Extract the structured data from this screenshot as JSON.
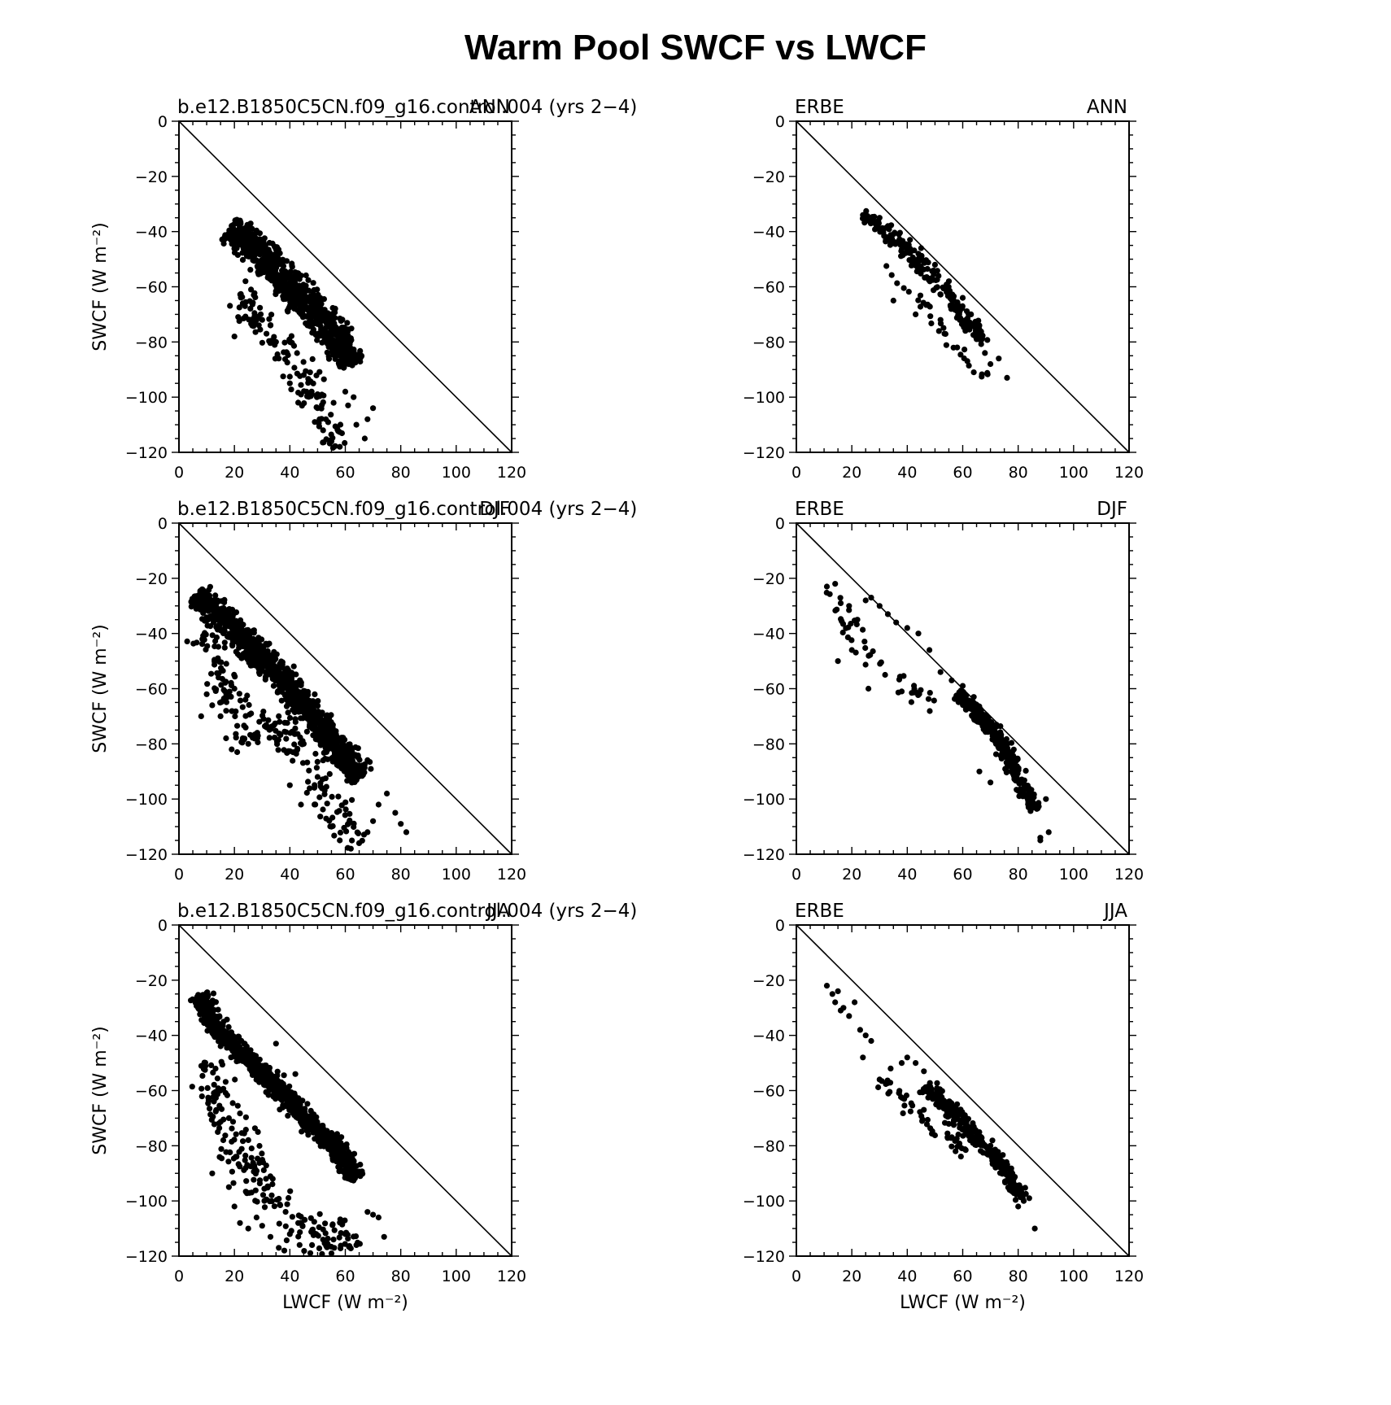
{
  "figure": {
    "title": "Warm Pool SWCF vs LWCF"
  },
  "chart_data": [
    {
      "type": "scatter",
      "left_label": "b.e12.B1850C5CN.f09_g16.control.004 (yrs 2−4)",
      "right_label": "ANN",
      "xlabel": "",
      "ylabel": "SWCF (W m⁻²)",
      "xlim": [
        0,
        120
      ],
      "ylim": [
        -120,
        0
      ],
      "xticks": [
        0,
        20,
        40,
        60,
        80,
        100,
        120
      ],
      "yticks": [
        -120,
        -100,
        -80,
        -60,
        -40,
        -20,
        0
      ],
      "reference_line": "y = -x",
      "grid": false,
      "marker_color": "#000000",
      "cloud": [
        [
          18,
          -39
        ],
        [
          24,
          -43
        ],
        [
          30,
          -49
        ],
        [
          36,
          -55
        ],
        [
          42,
          -62
        ],
        [
          48,
          -68
        ],
        [
          54,
          -74
        ],
        [
          58,
          -80
        ],
        [
          62,
          -89
        ]
      ],
      "cloud_width": 8,
      "cloud_density": 2.2,
      "spread": [
        [
          22,
          -62
        ],
        [
          28,
          -70
        ],
        [
          34,
          -78
        ],
        [
          40,
          -88
        ],
        [
          46,
          -96
        ],
        [
          52,
          -106
        ],
        [
          56,
          -114
        ],
        [
          58,
          -119
        ]
      ],
      "spread_width": 9,
      "spread_count": 120,
      "x": [
        20,
        23,
        27,
        30,
        33,
        36,
        40,
        43,
        46,
        49,
        52,
        55,
        58,
        61,
        64,
        67,
        70,
        24,
        26,
        35,
        39,
        45,
        48,
        50,
        53,
        57,
        60,
        63,
        68
      ],
      "y": [
        -78,
        -66,
        -63,
        -72,
        -74,
        -86,
        -95,
        -102,
        -98,
        -109,
        -112,
        -116,
        -118,
        -103,
        -110,
        -115,
        -104,
        -58,
        -61,
        -80,
        -84,
        -92,
        -99,
        -104,
        -108,
        -111,
        -98,
        -100,
        -108
      ]
    },
    {
      "type": "scatter",
      "left_label": "ERBE",
      "right_label": "ANN",
      "xlabel": "",
      "ylabel": "",
      "xlim": [
        0,
        120
      ],
      "ylim": [
        -120,
        0
      ],
      "xticks": [
        0,
        20,
        40,
        60,
        80,
        100,
        120
      ],
      "yticks": [
        -120,
        -100,
        -80,
        -60,
        -40,
        -20,
        0
      ],
      "reference_line": "y = -x",
      "grid": false,
      "marker_color": "#000000",
      "cloud": [
        [
          24,
          -34
        ],
        [
          32,
          -40
        ],
        [
          40,
          -47
        ],
        [
          48,
          -56
        ],
        [
          56,
          -65
        ],
        [
          62,
          -72
        ],
        [
          68,
          -80
        ]
      ],
      "cloud_width": 4.5,
      "cloud_density": 0.55,
      "spread": [
        [
          30,
          -50
        ],
        [
          38,
          -58
        ],
        [
          46,
          -66
        ],
        [
          56,
          -80
        ],
        [
          64,
          -90
        ],
        [
          70,
          -94
        ]
      ],
      "spread_width": 4,
      "spread_count": 30,
      "x": [
        24,
        27,
        30,
        33,
        37,
        41,
        45,
        50,
        55,
        60,
        63,
        66,
        68,
        70,
        73,
        76,
        35,
        43,
        52,
        58,
        64
      ],
      "y": [
        -34,
        -36,
        -35,
        -38,
        -41,
        -43,
        -46,
        -52,
        -58,
        -64,
        -70,
        -74,
        -84,
        -88,
        -86,
        -93,
        -65,
        -70,
        -72,
        -82,
        -91
      ]
    },
    {
      "type": "scatter",
      "left_label": "b.e12.B1850C5CN.f09_g16.control.004 (yrs 2−4)",
      "right_label": "DJF",
      "xlabel": "",
      "ylabel": "SWCF (W m⁻²)",
      "xlim": [
        0,
        120
      ],
      "ylim": [
        -120,
        0
      ],
      "xticks": [
        0,
        20,
        40,
        60,
        80,
        100,
        120
      ],
      "yticks": [
        -120,
        -100,
        -80,
        -60,
        -40,
        -20,
        0
      ],
      "reference_line": "y = -x",
      "grid": false,
      "marker_color": "#000000",
      "cloud": [
        [
          6,
          -26
        ],
        [
          12,
          -31
        ],
        [
          18,
          -37
        ],
        [
          24,
          -43
        ],
        [
          30,
          -50
        ],
        [
          36,
          -54
        ],
        [
          42,
          -62
        ],
        [
          48,
          -70
        ],
        [
          54,
          -77
        ],
        [
          60,
          -85
        ],
        [
          66,
          -92
        ]
      ],
      "cloud_width": 7,
      "cloud_density": 2.0,
      "spread": [
        [
          8,
          -40
        ],
        [
          14,
          -54
        ],
        [
          20,
          -66
        ],
        [
          26,
          -78
        ],
        [
          34,
          -72
        ],
        [
          42,
          -82
        ],
        [
          50,
          -92
        ],
        [
          56,
          -104
        ],
        [
          62,
          -112
        ],
        [
          66,
          -116
        ]
      ],
      "spread_width": 9,
      "spread_count": 190,
      "x": [
        8,
        10,
        12,
        15,
        17,
        19,
        21,
        23,
        25,
        27,
        29,
        33,
        40,
        44,
        50,
        55,
        58,
        62,
        65,
        68,
        70,
        72,
        75,
        78,
        80,
        82,
        20,
        24,
        36,
        45,
        52
      ],
      "y": [
        -70,
        -62,
        -66,
        -70,
        -78,
        -82,
        -83,
        -78,
        -80,
        -77,
        -72,
        -74,
        -95,
        -102,
        -92,
        -110,
        -115,
        -118,
        -116,
        -112,
        -108,
        -102,
        -98,
        -105,
        -109,
        -112,
        -60,
        -64,
        -70,
        -80,
        -86
      ]
    },
    {
      "type": "scatter",
      "left_label": "ERBE",
      "right_label": "DJF",
      "xlabel": "",
      "ylabel": "",
      "xlim": [
        0,
        120
      ],
      "ylim": [
        -120,
        0
      ],
      "xticks": [
        0,
        20,
        40,
        60,
        80,
        100,
        120
      ],
      "yticks": [
        -120,
        -100,
        -80,
        -60,
        -40,
        -20,
        0
      ],
      "reference_line": "y = -x",
      "grid": false,
      "marker_color": "#000000",
      "cloud": [
        [
          58,
          -62
        ],
        [
          64,
          -68
        ],
        [
          70,
          -74
        ],
        [
          74,
          -80
        ],
        [
          78,
          -88
        ],
        [
          82,
          -96
        ],
        [
          86,
          -104
        ]
      ],
      "cloud_width": 4,
      "cloud_density": 1.0,
      "spread": [
        [
          12,
          -24
        ],
        [
          18,
          -36
        ],
        [
          24,
          -44
        ],
        [
          30,
          -50
        ],
        [
          36,
          -56
        ],
        [
          42,
          -60
        ],
        [
          50,
          -66
        ]
      ],
      "spread_width": 6,
      "spread_count": 45,
      "x": [
        11,
        14,
        16,
        19,
        22,
        25,
        27,
        30,
        33,
        36,
        40,
        44,
        48,
        52,
        56,
        60,
        64,
        68,
        72,
        76,
        80,
        84,
        88,
        91,
        15,
        20,
        26,
        32,
        38,
        66,
        70,
        88,
        90
      ],
      "y": [
        -23,
        -22,
        -29,
        -30,
        -35,
        -28,
        -27,
        -30,
        -33,
        -36,
        -38,
        -40,
        -46,
        -54,
        -57,
        -59,
        -63,
        -72,
        -80,
        -87,
        -97,
        -103,
        -114,
        -112,
        -50,
        -46,
        -60,
        -55,
        -61,
        -90,
        -94,
        -115,
        -100
      ]
    },
    {
      "type": "scatter",
      "left_label": "b.e12.B1850C5CN.f09_g16.control.004 (yrs 2−4)",
      "right_label": "JJA",
      "xlabel": "LWCF (W m⁻²)",
      "ylabel": "SWCF (W m⁻²)",
      "xlim": [
        0,
        120
      ],
      "ylim": [
        -120,
        0
      ],
      "xticks": [
        0,
        20,
        40,
        60,
        80,
        100,
        120
      ],
      "yticks": [
        -120,
        -100,
        -80,
        -60,
        -40,
        -20,
        0
      ],
      "reference_line": "y = -x",
      "grid": false,
      "marker_color": "#000000",
      "cloud": [
        [
          8,
          -25
        ],
        [
          10,
          -32
        ],
        [
          14,
          -38
        ],
        [
          20,
          -44
        ],
        [
          26,
          -50
        ],
        [
          32,
          -55
        ],
        [
          38,
          -62
        ],
        [
          44,
          -68
        ],
        [
          50,
          -74
        ],
        [
          56,
          -80
        ],
        [
          60,
          -86
        ],
        [
          64,
          -92
        ]
      ],
      "cloud_width": 5,
      "cloud_density": 1.9,
      "spread": [
        [
          10,
          -48
        ],
        [
          14,
          -62
        ],
        [
          20,
          -76
        ],
        [
          26,
          -88
        ],
        [
          32,
          -96
        ],
        [
          38,
          -104
        ],
        [
          44,
          -110
        ],
        [
          50,
          -112
        ],
        [
          56,
          -114
        ],
        [
          62,
          -110
        ]
      ],
      "spread_width": 11,
      "spread_count": 200,
      "x": [
        12,
        14,
        16,
        18,
        20,
        22,
        25,
        28,
        30,
        33,
        36,
        38,
        40,
        44,
        48,
        52,
        56,
        60,
        64,
        68,
        70,
        72,
        74,
        15,
        18,
        35,
        42,
        55
      ],
      "y": [
        -90,
        -75,
        -78,
        -95,
        -102,
        -108,
        -110,
        -106,
        -109,
        -113,
        -117,
        -118,
        -112,
        -108,
        -116,
        -114,
        -117,
        -112,
        -116,
        -104,
        -105,
        -106,
        -113,
        -60,
        -70,
        -43,
        -54,
        -119
      ]
    },
    {
      "type": "scatter",
      "left_label": "ERBE",
      "right_label": "JJA",
      "xlabel": "LWCF (W m⁻²)",
      "ylabel": "",
      "xlim": [
        0,
        120
      ],
      "ylim": [
        -120,
        0
      ],
      "xticks": [
        0,
        20,
        40,
        60,
        80,
        100,
        120
      ],
      "yticks": [
        -120,
        -100,
        -80,
        -60,
        -40,
        -20,
        0
      ],
      "reference_line": "y = -x",
      "grid": false,
      "marker_color": "#000000",
      "cloud": [
        [
          46,
          -58
        ],
        [
          52,
          -63
        ],
        [
          58,
          -69
        ],
        [
          64,
          -76
        ],
        [
          70,
          -82
        ],
        [
          76,
          -90
        ],
        [
          82,
          -99
        ]
      ],
      "cloud_width": 4,
      "cloud_density": 0.9,
      "spread": [
        [
          30,
          -56
        ],
        [
          36,
          -60
        ],
        [
          42,
          -66
        ],
        [
          48,
          -72
        ],
        [
          54,
          -76
        ],
        [
          62,
          -82
        ]
      ],
      "spread_width": 5,
      "spread_count": 50,
      "x": [
        11,
        13,
        15,
        17,
        19,
        21,
        23,
        25,
        27,
        30,
        34,
        38,
        40,
        43,
        46,
        80,
        82,
        84,
        86,
        14,
        16,
        24
      ],
      "y": [
        -22,
        -25,
        -24,
        -30,
        -33,
        -28,
        -38,
        -40,
        -42,
        -56,
        -52,
        -50,
        -48,
        -50,
        -53,
        -102,
        -100,
        -99,
        -110,
        -28,
        -31,
        -48
      ]
    }
  ]
}
